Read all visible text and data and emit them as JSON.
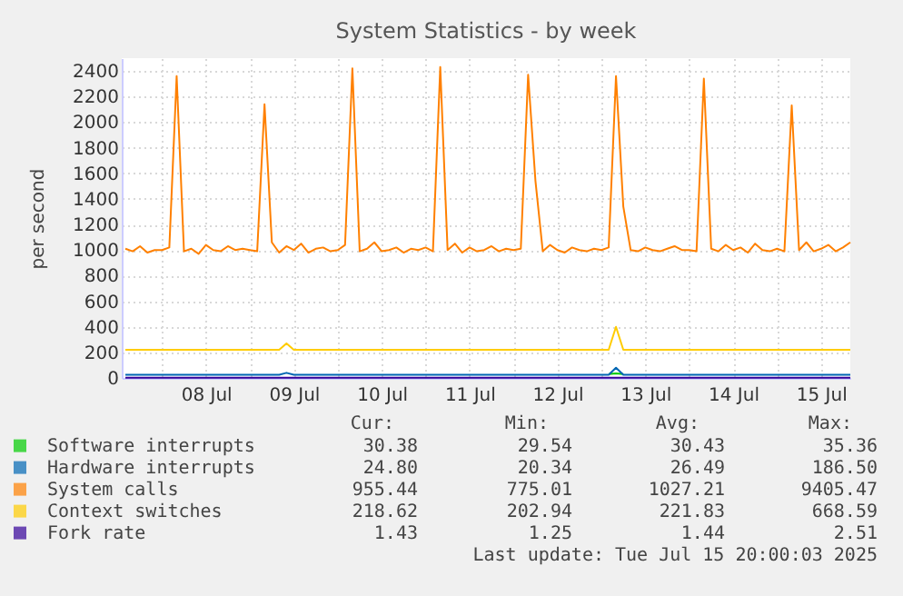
{
  "chart_data": {
    "type": "line",
    "title": "System Statistics - by week",
    "ylabel": "per second",
    "x": [
      "2025-07-07T14:00",
      "2025-07-07T16:00",
      "2025-07-07T18:00",
      "2025-07-07T20:00",
      "2025-07-07T22:00",
      "2025-07-08T00:00",
      "2025-07-08T02:00",
      "2025-07-08T04:00",
      "2025-07-08T06:00",
      "2025-07-08T08:00",
      "2025-07-08T10:00",
      "2025-07-08T12:00",
      "2025-07-08T14:00",
      "2025-07-08T16:00",
      "2025-07-08T18:00",
      "2025-07-08T20:00",
      "2025-07-08T22:00",
      "2025-07-09T00:00",
      "2025-07-09T02:00",
      "2025-07-09T04:00",
      "2025-07-09T06:00",
      "2025-07-09T08:00",
      "2025-07-09T10:00",
      "2025-07-09T12:00",
      "2025-07-09T14:00",
      "2025-07-09T16:00",
      "2025-07-09T18:00",
      "2025-07-09T20:00",
      "2025-07-09T22:00",
      "2025-07-10T00:00",
      "2025-07-10T02:00",
      "2025-07-10T04:00",
      "2025-07-10T06:00",
      "2025-07-10T08:00",
      "2025-07-10T10:00",
      "2025-07-10T12:00",
      "2025-07-10T14:00",
      "2025-07-10T16:00",
      "2025-07-10T18:00",
      "2025-07-10T20:00",
      "2025-07-10T22:00",
      "2025-07-11T00:00",
      "2025-07-11T02:00",
      "2025-07-11T04:00",
      "2025-07-11T06:00",
      "2025-07-11T08:00",
      "2025-07-11T10:00",
      "2025-07-11T12:00",
      "2025-07-11T14:00",
      "2025-07-11T16:00",
      "2025-07-11T18:00",
      "2025-07-11T20:00",
      "2025-07-11T22:00",
      "2025-07-12T00:00",
      "2025-07-12T02:00",
      "2025-07-12T04:00",
      "2025-07-12T06:00",
      "2025-07-12T08:00",
      "2025-07-12T10:00",
      "2025-07-12T12:00",
      "2025-07-12T14:00",
      "2025-07-12T16:00",
      "2025-07-12T18:00",
      "2025-07-12T20:00",
      "2025-07-12T22:00",
      "2025-07-13T00:00",
      "2025-07-13T02:00",
      "2025-07-13T04:00",
      "2025-07-13T06:00",
      "2025-07-13T08:00",
      "2025-07-13T10:00",
      "2025-07-13T12:00",
      "2025-07-13T14:00",
      "2025-07-13T16:00",
      "2025-07-13T18:00",
      "2025-07-13T20:00",
      "2025-07-13T22:00",
      "2025-07-14T00:00",
      "2025-07-14T02:00",
      "2025-07-14T04:00",
      "2025-07-14T06:00",
      "2025-07-14T08:00",
      "2025-07-14T10:00",
      "2025-07-14T12:00",
      "2025-07-14T14:00",
      "2025-07-14T16:00",
      "2025-07-14T18:00",
      "2025-07-14T20:00",
      "2025-07-14T22:00",
      "2025-07-15T00:00",
      "2025-07-15T02:00",
      "2025-07-15T04:00",
      "2025-07-15T06:00",
      "2025-07-15T08:00",
      "2025-07-15T10:00",
      "2025-07-15T12:00",
      "2025-07-15T14:00",
      "2025-07-15T16:00",
      "2025-07-15T18:00",
      "2025-07-15T20:00"
    ],
    "xlim": [
      "2025-07-07T13:00",
      "2025-07-15T20:00"
    ],
    "xticks": [
      {
        "value": "2025-07-08T00:00",
        "label": null
      },
      {
        "value": "2025-07-09T00:00",
        "label": null
      },
      {
        "value": "2025-07-10T00:00",
        "label": null
      },
      {
        "value": "2025-07-11T00:00",
        "label": null
      },
      {
        "value": "2025-07-12T00:00",
        "label": null
      },
      {
        "value": "2025-07-13T00:00",
        "label": null
      },
      {
        "value": "2025-07-14T00:00",
        "label": null
      },
      {
        "value": "2025-07-15T00:00",
        "label": null
      },
      {
        "value": "2025-07-08T12:00",
        "label": "08 Jul"
      },
      {
        "value": "2025-07-09T12:00",
        "label": "09 Jul"
      },
      {
        "value": "2025-07-10T12:00",
        "label": "10 Jul"
      },
      {
        "value": "2025-07-11T12:00",
        "label": "11 Jul"
      },
      {
        "value": "2025-07-12T12:00",
        "label": "12 Jul"
      },
      {
        "value": "2025-07-13T12:00",
        "label": "13 Jul"
      },
      {
        "value": "2025-07-14T12:00",
        "label": "14 Jul"
      },
      {
        "value": "2025-07-15T12:00",
        "label": "15 Jul"
      }
    ],
    "ylim": [
      0,
      2500
    ],
    "yticks": [
      0,
      200,
      400,
      600,
      800,
      1000,
      1200,
      1400,
      1600,
      1800,
      2000,
      2200,
      2400
    ],
    "grid": true,
    "legend": "bottom",
    "series": [
      {
        "name": "Software interrupts",
        "color": "#00cc00",
        "values": [
          null,
          null,
          null,
          null,
          null,
          null,
          null,
          null,
          null,
          null,
          null,
          null,
          null,
          null,
          null,
          null,
          null,
          null,
          null,
          null,
          null,
          null,
          null,
          null,
          null,
          null,
          null,
          null,
          null,
          null,
          null,
          null,
          null,
          null,
          null,
          null,
          null,
          null,
          null,
          null,
          null,
          null,
          null,
          null,
          null,
          null,
          null,
          null,
          null,
          null,
          null,
          null,
          null,
          null,
          null,
          null,
          null,
          null,
          null,
          null,
          null,
          null,
          null,
          null,
          null,
          null,
          30,
          35,
          30,
          null,
          null,
          null,
          null,
          null,
          null,
          null,
          null,
          null,
          null,
          null,
          null,
          null,
          null,
          null,
          null,
          null,
          null,
          null,
          null,
          null,
          null,
          null,
          null,
          null,
          null,
          null,
          null,
          null,
          null,
          null
        ]
      },
      {
        "name": "Hardware interrupts",
        "color": "#0066b3",
        "values": [
          25,
          25,
          25,
          25,
          25,
          25,
          25,
          25,
          25,
          25,
          25,
          25,
          25,
          25,
          25,
          25,
          25,
          25,
          25,
          25,
          25,
          25,
          40,
          25,
          25,
          25,
          25,
          25,
          25,
          25,
          25,
          25,
          25,
          25,
          25,
          25,
          25,
          25,
          25,
          25,
          25,
          25,
          25,
          25,
          25,
          25,
          25,
          25,
          25,
          25,
          25,
          25,
          25,
          25,
          25,
          25,
          25,
          25,
          25,
          25,
          25,
          25,
          25,
          25,
          25,
          25,
          25,
          80,
          25,
          25,
          25,
          25,
          25,
          25,
          25,
          25,
          25,
          25,
          25,
          25,
          25,
          25,
          25,
          25,
          25,
          25,
          25,
          25,
          25,
          25,
          25,
          25,
          25,
          25,
          25,
          25,
          25,
          25,
          25,
          25
        ]
      },
      {
        "name": "System calls",
        "color": "#ff8000",
        "values": [
          1010,
          990,
          1030,
          980,
          1000,
          1000,
          1020,
          2360,
          990,
          1010,
          970,
          1040,
          1000,
          990,
          1030,
          1000,
          1010,
          1000,
          990,
          2140,
          1060,
          980,
          1030,
          1000,
          1050,
          980,
          1010,
          1020,
          990,
          1000,
          1040,
          2420,
          990,
          1010,
          1060,
          990,
          1000,
          1020,
          980,
          1010,
          1000,
          1020,
          990,
          2430,
          1000,
          1050,
          980,
          1020,
          990,
          1000,
          1030,
          990,
          1010,
          1000,
          1010,
          2370,
          1540,
          990,
          1040,
          1000,
          980,
          1020,
          1000,
          990,
          1010,
          1000,
          1020,
          2360,
          1340,
          1000,
          990,
          1020,
          1000,
          990,
          1010,
          1030,
          1000,
          1000,
          990,
          2340,
          1010,
          990,
          1040,
          1000,
          1020,
          980,
          1050,
          1000,
          990,
          1010,
          990,
          2130,
          1000,
          1060,
          990,
          1010,
          1040,
          990,
          1020,
          1060
        ]
      },
      {
        "name": "Context switches",
        "color": "#ffcc00",
        "values": [
          220,
          220,
          220,
          220,
          220,
          220,
          220,
          220,
          220,
          220,
          220,
          220,
          220,
          220,
          220,
          220,
          220,
          220,
          220,
          220,
          220,
          220,
          270,
          220,
          220,
          220,
          220,
          220,
          220,
          220,
          220,
          220,
          220,
          220,
          220,
          220,
          220,
          220,
          220,
          220,
          220,
          220,
          220,
          220,
          220,
          220,
          220,
          220,
          220,
          220,
          220,
          220,
          220,
          220,
          220,
          220,
          220,
          220,
          220,
          220,
          220,
          220,
          220,
          220,
          220,
          220,
          220,
          400,
          220,
          220,
          220,
          220,
          220,
          220,
          220,
          220,
          220,
          220,
          220,
          220,
          220,
          220,
          220,
          220,
          220,
          220,
          220,
          220,
          220,
          220,
          220,
          220,
          220,
          220,
          220,
          220,
          220,
          220,
          220,
          220
        ]
      },
      {
        "name": "Fork rate",
        "color": "#330099",
        "values": [
          1.4,
          1.4,
          1.4,
          1.4,
          1.4,
          1.4,
          1.4,
          1.4,
          1.4,
          1.4,
          1.4,
          1.4,
          1.4,
          1.4,
          1.4,
          1.4,
          1.4,
          1.4,
          1.4,
          1.4,
          1.4,
          1.4,
          1.4,
          1.4,
          1.4,
          1.4,
          1.4,
          1.4,
          1.4,
          1.4,
          1.4,
          1.4,
          1.4,
          1.4,
          1.4,
          1.4,
          1.4,
          1.4,
          1.4,
          1.4,
          1.4,
          1.4,
          1.4,
          1.4,
          1.4,
          1.4,
          1.4,
          1.4,
          1.4,
          1.4,
          1.4,
          1.4,
          1.4,
          1.4,
          1.4,
          1.4,
          1.4,
          1.4,
          1.4,
          1.4,
          1.4,
          1.4,
          1.4,
          1.4,
          1.4,
          1.4,
          1.4,
          1.4,
          1.4,
          1.4,
          1.4,
          1.4,
          1.4,
          1.4,
          1.4,
          1.4,
          1.4,
          1.4,
          1.4,
          1.4,
          1.4,
          1.4,
          1.4,
          1.4,
          1.4,
          1.4,
          1.4,
          1.4,
          1.4,
          1.4,
          1.4,
          1.4,
          1.4,
          1.4,
          1.4,
          1.4,
          1.4,
          1.4,
          1.4,
          1.4
        ]
      }
    ],
    "annotations": [
      "Cur:",
      "Min:",
      "Avg:",
      "Max:",
      "30.38",
      "29.54",
      "30.43",
      "35.36",
      "24.80",
      "20.34",
      "26.49",
      "186.50",
      "955.44",
      "775.01",
      "1027.21",
      "9405.47",
      "218.62",
      "202.94",
      "221.83",
      "668.59",
      "1.43",
      "1.25",
      "1.44",
      "2.51",
      "Last update: Tue Jul 15 20:00:03 2025"
    ]
  }
}
